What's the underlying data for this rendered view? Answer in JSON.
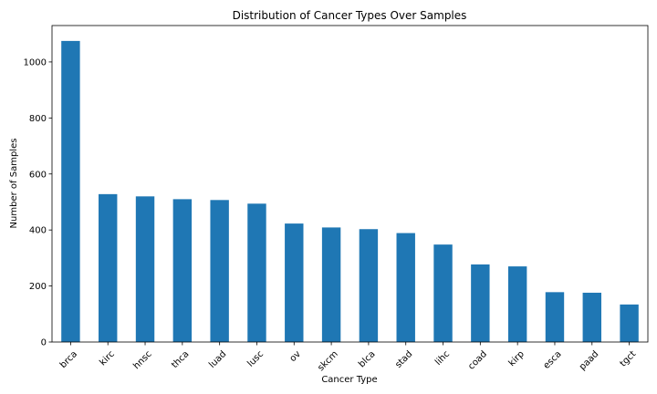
{
  "chart_data": {
    "type": "bar",
    "title": "Distribution of Cancer Types Over Samples",
    "xlabel": "Cancer Type",
    "ylabel": "Number of Samples",
    "categories": [
      "brca",
      "kirc",
      "hnsc",
      "thca",
      "luad",
      "lusc",
      "ov",
      "skcm",
      "blca",
      "stad",
      "lihc",
      "coad",
      "kirp",
      "esca",
      "paad",
      "tgct"
    ],
    "values": [
      1075,
      528,
      520,
      510,
      507,
      494,
      423,
      409,
      403,
      389,
      348,
      277,
      270,
      178,
      176,
      134
    ],
    "ylim": [
      0,
      1130
    ],
    "yticks": [
      0,
      200,
      400,
      600,
      800,
      1000
    ],
    "grid": false,
    "legend": "none",
    "bar_color": "#1f77b4",
    "x_tick_rotation_deg": 45
  }
}
